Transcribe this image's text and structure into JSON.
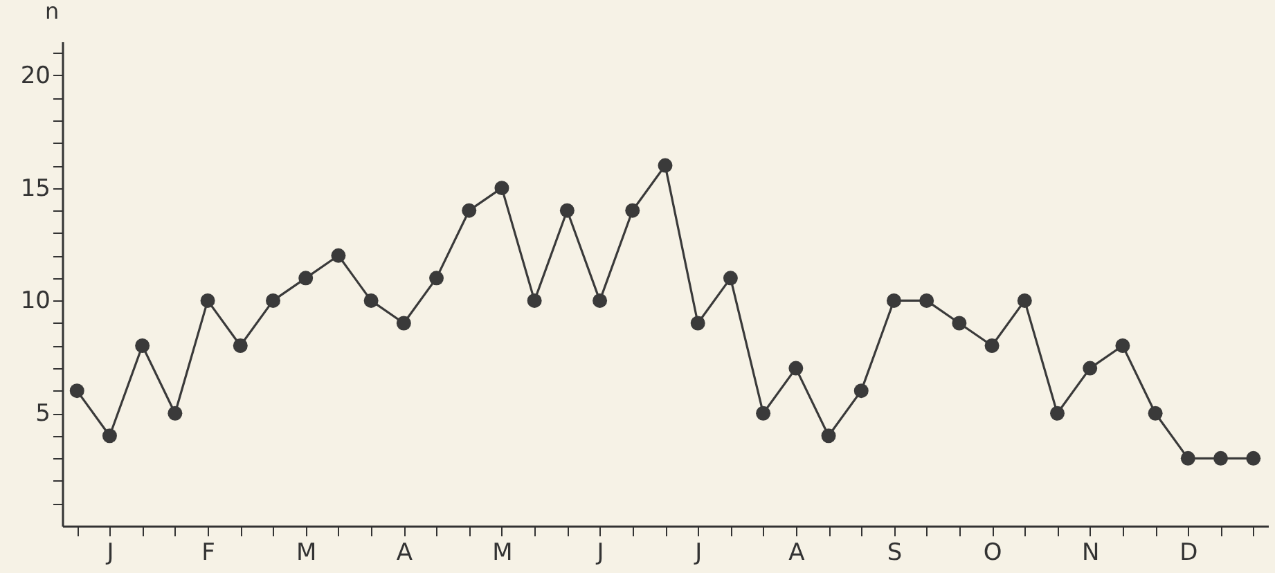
{
  "chart_data": {
    "type": "line",
    "ylabel": "n",
    "categories": [
      null,
      "J",
      null,
      null,
      "F",
      null,
      null,
      "M",
      null,
      null,
      "A",
      null,
      null,
      "M",
      null,
      null,
      "J",
      null,
      null,
      "J",
      null,
      null,
      "A",
      null,
      null,
      "S",
      null,
      null,
      "O",
      null,
      null,
      "N",
      null,
      null,
      "D",
      null,
      null
    ],
    "series": [
      {
        "color": "#3a3a3a",
        "values": [
          6,
          4,
          8,
          5,
          10,
          8,
          10,
          11,
          12,
          10,
          9,
          11,
          14,
          15,
          10,
          14,
          10,
          14,
          16,
          9,
          11,
          5,
          7,
          4,
          6,
          10,
          10,
          9,
          8,
          10,
          5,
          7,
          8,
          5,
          3,
          3,
          3
        ]
      }
    ],
    "ylim": [
      0,
      21.5
    ],
    "yticks": [
      {
        "value": 1,
        "label": null
      },
      {
        "value": 2,
        "label": null
      },
      {
        "value": 3,
        "label": null
      },
      {
        "value": 4,
        "label": null
      },
      5,
      {
        "value": 6,
        "label": null
      },
      {
        "value": 7,
        "label": null
      },
      {
        "value": 8,
        "label": null
      },
      {
        "value": 9,
        "label": null
      },
      10,
      {
        "value": 11,
        "label": null
      },
      {
        "value": 12,
        "label": null
      },
      {
        "value": 13,
        "label": null
      },
      {
        "value": 14,
        "label": null
      },
      15,
      {
        "value": 16,
        "label": null
      },
      {
        "value": 17,
        "label": null
      },
      {
        "value": 18,
        "label": null
      },
      {
        "value": 19,
        "label": null
      },
      20,
      {
        "value": 21,
        "label": null
      }
    ],
    "marker": "circle",
    "line_style": "solid"
  }
}
